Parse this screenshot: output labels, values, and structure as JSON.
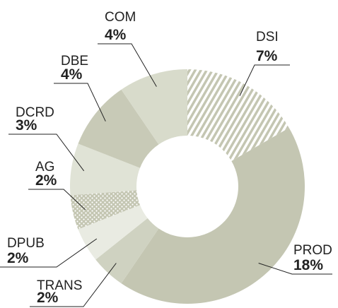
{
  "chart_data": {
    "type": "donut",
    "categories": [
      "DSI",
      "PROD",
      "TRANS",
      "DPUB",
      "AG",
      "DCRD",
      "DBE",
      "COM"
    ],
    "values": [
      7,
      18,
      2,
      2,
      2,
      3,
      4,
      4
    ],
    "value_labels": [
      "7%",
      "18%",
      "2%",
      "2%",
      "2%",
      "3%",
      "4%",
      "4%"
    ],
    "colors": [
      "hatch",
      "#c4c6b2",
      "#cfd2c1",
      "#e9ebe2",
      "dots",
      "#e0e3d6",
      "#c8cab7",
      "#d8dbcb"
    ]
  }
}
